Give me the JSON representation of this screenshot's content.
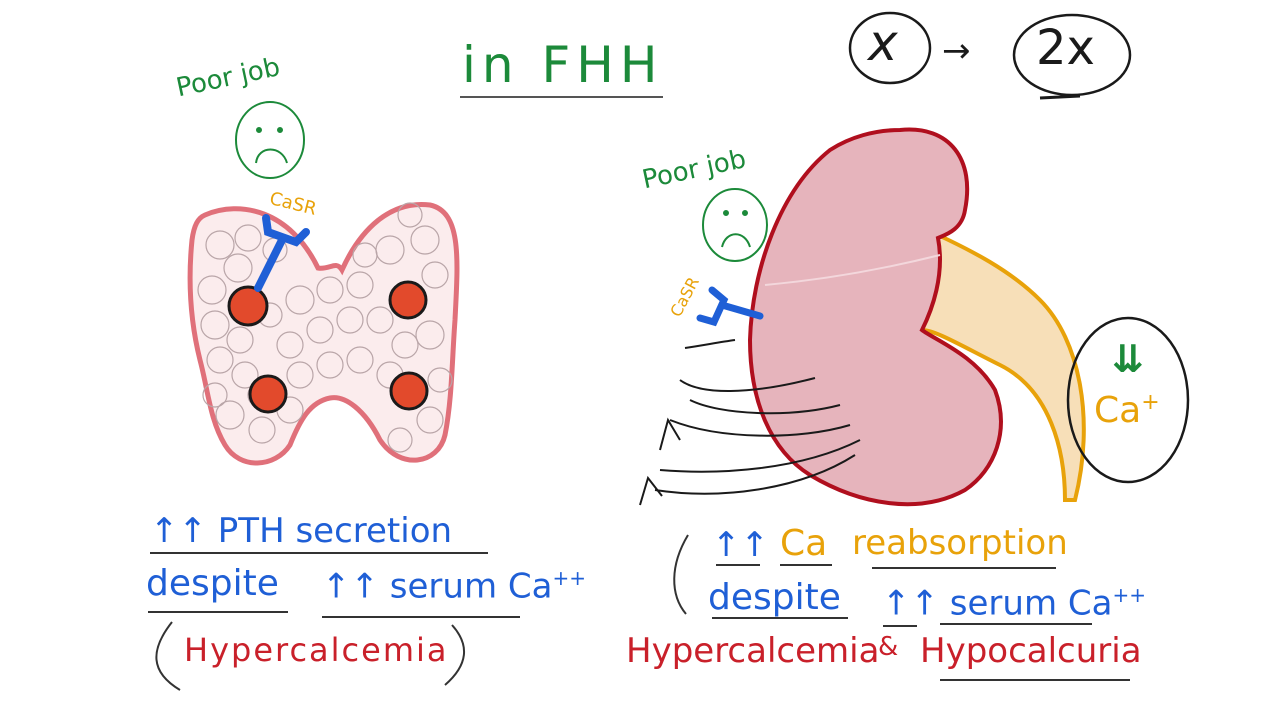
{
  "title": "in FHH",
  "top_right": {
    "left": "x",
    "right": "2x",
    "arrow": "→"
  },
  "left_panel": {
    "emotion": "Poor job",
    "receptor": "CaSR",
    "arrows": "↑↑",
    "line1": "PTH secretion",
    "line2_a": "despite",
    "line2_b": "serum Ca",
    "sup": "++",
    "paren_text": "Hypercalcemia"
  },
  "right_panel": {
    "emotion": "Poor job",
    "receptor": "CaSR",
    "arrows": "↑↑",
    "ca": "Ca",
    "reabsorption": "reabsorption",
    "despite": "despite",
    "serum": "serum Ca",
    "sup": "++",
    "bottom_a": "Hypercalcemia",
    "amp": "&",
    "bottom_b": "Hypocalcuria",
    "urine_arrow": "⇊",
    "urine_ca": "Ca",
    "urine_sup": "+"
  },
  "colors": {
    "blue": "#1f5fd6",
    "green": "#1c8a3a",
    "red": "#c9202a",
    "orange": "#e8a20a",
    "gland_outline": "#e0707a",
    "kidney_fill": "#e6b4bc",
    "kidney_outline": "#b00f1e",
    "nodule": "#e24a2c"
  }
}
